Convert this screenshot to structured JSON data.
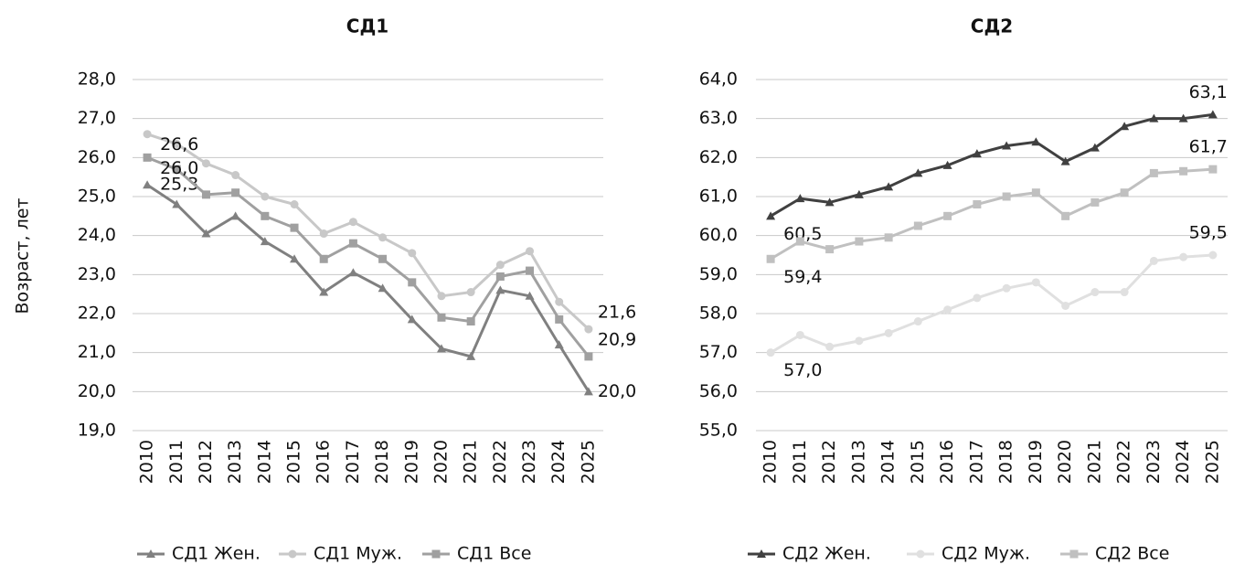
{
  "chart_data": [
    {
      "type": "line",
      "title": "СД1",
      "ylabel": "Возраст, лет",
      "categories": [
        "2010",
        "2011",
        "2012",
        "2013",
        "2014",
        "2015",
        "2016",
        "2017",
        "2018",
        "2019",
        "2020",
        "2021",
        "2022",
        "2023",
        "2024",
        "2025"
      ],
      "ylim": [
        19,
        28
      ],
      "yticks": [
        {
          "value": 19,
          "label": "19,0"
        },
        {
          "value": 20,
          "label": "20,0"
        },
        {
          "value": 21,
          "label": "21,0"
        },
        {
          "value": 22,
          "label": "22,0"
        },
        {
          "value": 23,
          "label": "23,0"
        },
        {
          "value": 24,
          "label": "24,0"
        },
        {
          "value": 25,
          "label": "25,0"
        },
        {
          "value": 26,
          "label": "26,0"
        },
        {
          "value": 27,
          "label": "27,0"
        },
        {
          "value": 28,
          "label": "28,0"
        }
      ],
      "grid": true,
      "legend": "bottom",
      "series": [
        {
          "name": "СД1 Жен.",
          "color": "#808080",
          "marker": "triangle",
          "values": [
            25.3,
            24.8,
            24.05,
            24.5,
            23.85,
            23.4,
            22.55,
            23.05,
            22.65,
            21.85,
            21.1,
            20.9,
            22.6,
            22.45,
            21.2,
            20.0
          ],
          "value_labels": [
            "25,3",
            null,
            null,
            null,
            null,
            null,
            null,
            null,
            null,
            null,
            null,
            null,
            null,
            null,
            null,
            "20,0"
          ]
        },
        {
          "name": "СД1 Муж.",
          "color": "#c8c8c8",
          "marker": "circle",
          "values": [
            26.6,
            26.35,
            25.85,
            25.55,
            25.0,
            24.8,
            24.05,
            24.35,
            23.95,
            23.55,
            22.45,
            22.55,
            23.25,
            23.6,
            22.3,
            21.6
          ],
          "value_labels": [
            "26,6",
            null,
            null,
            null,
            null,
            null,
            null,
            null,
            null,
            null,
            null,
            null,
            null,
            null,
            null,
            "21,6"
          ]
        },
        {
          "name": "СД1 Все",
          "color": "#a0a0a0",
          "marker": "square",
          "values": [
            26.0,
            25.7,
            25.05,
            25.1,
            24.5,
            24.2,
            23.4,
            23.8,
            23.4,
            22.8,
            21.9,
            21.8,
            22.95,
            23.1,
            21.85,
            20.9
          ],
          "value_labels": [
            "26,0",
            null,
            null,
            null,
            null,
            null,
            null,
            null,
            null,
            null,
            null,
            null,
            null,
            null,
            null,
            "20,9"
          ]
        }
      ]
    },
    {
      "type": "line",
      "title": "СД2",
      "categories": [
        "2010",
        "2011",
        "2012",
        "2013",
        "2014",
        "2015",
        "2016",
        "2017",
        "2018",
        "2019",
        "2020",
        "2021",
        "2022",
        "2023",
        "2024",
        "2025"
      ],
      "ylim": [
        55,
        64
      ],
      "yticks": [
        {
          "value": 55,
          "label": "55,0"
        },
        {
          "value": 56,
          "label": "56,0"
        },
        {
          "value": 57,
          "label": "57,0"
        },
        {
          "value": 58,
          "label": "58,0"
        },
        {
          "value": 59,
          "label": "59,0"
        },
        {
          "value": 60,
          "label": "60,0"
        },
        {
          "value": 61,
          "label": "61,0"
        },
        {
          "value": 62,
          "label": "62,0"
        },
        {
          "value": 63,
          "label": "63,0"
        },
        {
          "value": 64,
          "label": "64,0"
        }
      ],
      "grid": true,
      "legend": "bottom",
      "series": [
        {
          "name": "СД2 Жен.",
          "color": "#404040",
          "marker": "triangle",
          "values": [
            60.5,
            60.95,
            60.85,
            61.05,
            61.25,
            61.6,
            61.8,
            62.1,
            62.3,
            62.4,
            61.9,
            62.25,
            62.8,
            63.0,
            63.0,
            63.1
          ],
          "value_labels": [
            "60,5",
            null,
            null,
            null,
            null,
            null,
            null,
            null,
            null,
            null,
            null,
            null,
            null,
            null,
            null,
            "63,1"
          ]
        },
        {
          "name": "СД2 Муж.",
          "color": "#e0e0e0",
          "marker": "circle",
          "values": [
            57.0,
            57.45,
            57.15,
            57.3,
            57.5,
            57.8,
            58.1,
            58.4,
            58.65,
            58.8,
            58.2,
            58.55,
            58.55,
            59.35,
            59.45,
            59.5
          ],
          "value_labels": [
            "57,0",
            null,
            null,
            null,
            null,
            null,
            null,
            null,
            null,
            null,
            null,
            null,
            null,
            null,
            null,
            "59,5"
          ]
        },
        {
          "name": "СД2 Все",
          "color": "#c0c0c0",
          "marker": "square",
          "values": [
            59.4,
            59.85,
            59.65,
            59.85,
            59.95,
            60.25,
            60.5,
            60.8,
            61.0,
            61.1,
            60.5,
            60.85,
            61.1,
            61.6,
            61.65,
            61.7
          ],
          "value_labels": [
            "59,4",
            null,
            null,
            null,
            null,
            null,
            null,
            null,
            null,
            null,
            null,
            null,
            null,
            null,
            null,
            "61,7"
          ]
        }
      ]
    }
  ]
}
